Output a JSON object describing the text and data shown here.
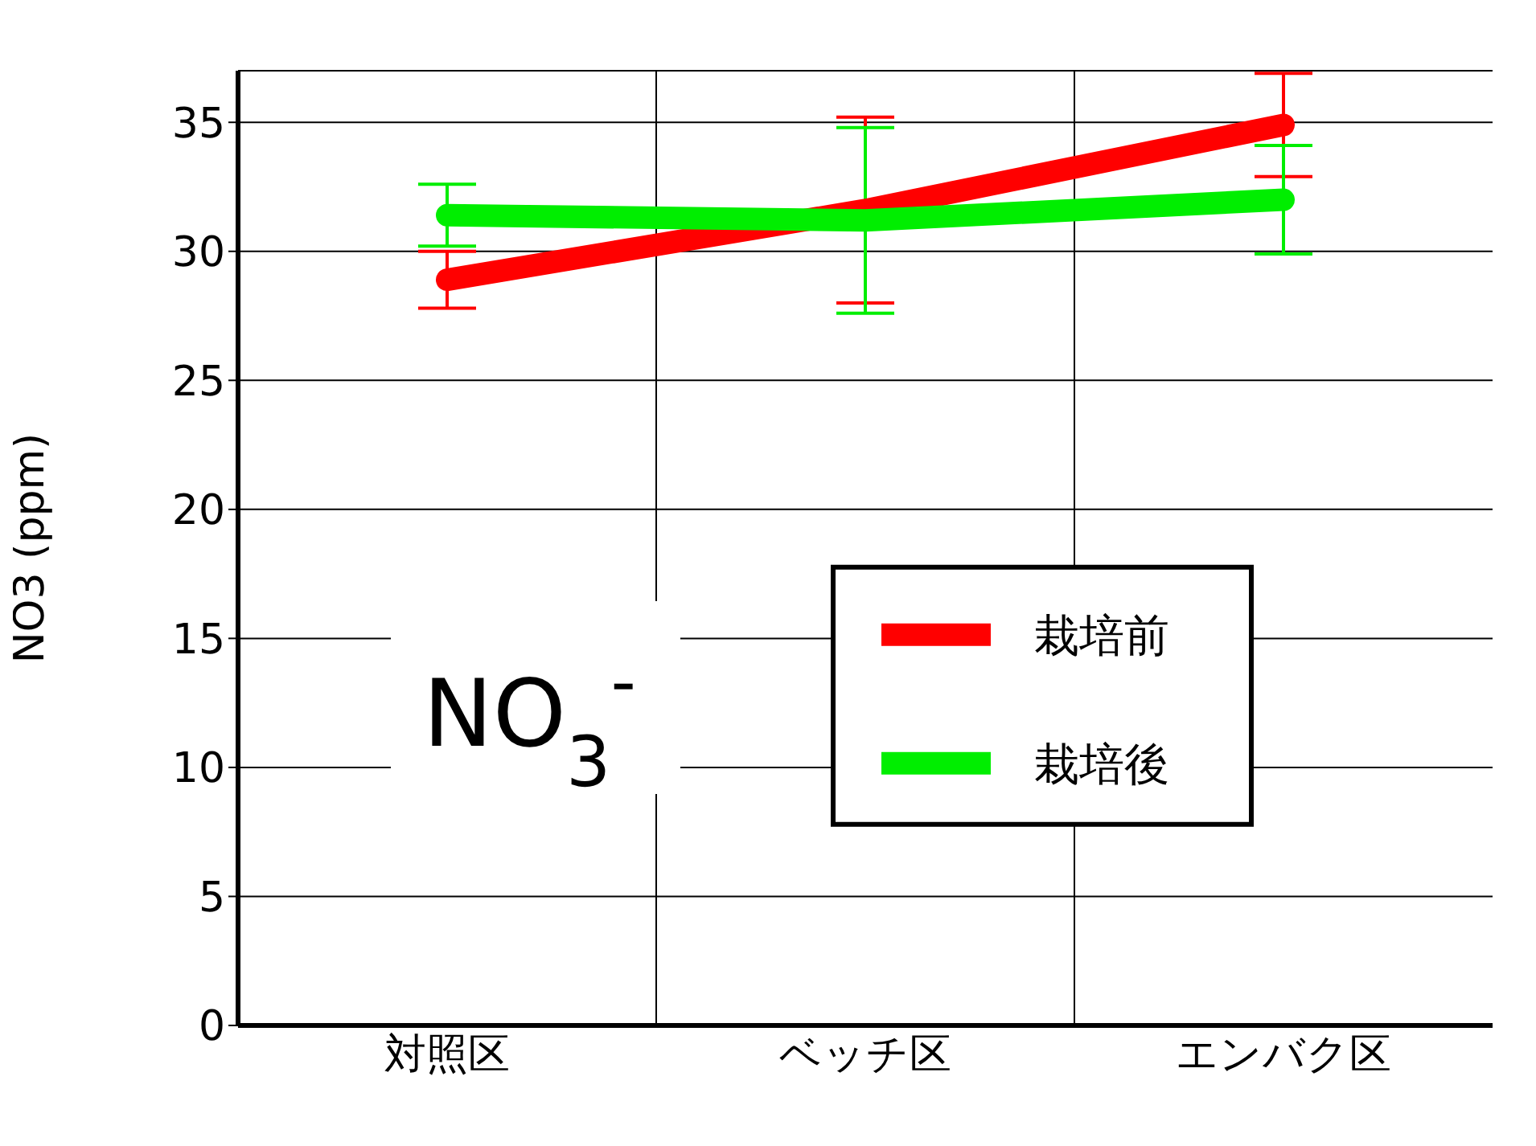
{
  "chart_data": {
    "type": "line",
    "ylabel": "NO3 (ppm)",
    "categories": [
      "対照区",
      "ベッチ区",
      "エンバク区"
    ],
    "series": [
      {
        "name": "栽培前",
        "color": "#ff0000",
        "values": [
          28.9,
          31.6,
          34.9
        ],
        "errors": [
          1.1,
          3.6,
          2.0
        ]
      },
      {
        "name": "栽培後",
        "color": "#00ee00",
        "values": [
          31.4,
          31.2,
          32.0
        ],
        "errors": [
          1.2,
          3.6,
          2.1
        ]
      }
    ],
    "ylim": [
      0,
      37
    ],
    "yticks": [
      0,
      5,
      10,
      15,
      20,
      25,
      30,
      35
    ],
    "grid": true,
    "legend": "right",
    "marker": "none",
    "line_style": "solid",
    "annotations": [
      "NO$_{3}$$^{-}$"
    ]
  }
}
